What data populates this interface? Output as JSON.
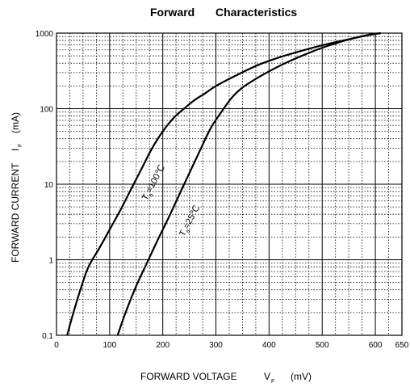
{
  "chart_data": {
    "type": "line",
    "title_part1": "Forward",
    "title_part2": "Characteristics",
    "xlabel": "FORWARD VOLTAGE",
    "xlabel_symbol": "V",
    "xlabel_subscript": "F",
    "xlabel_unit": "(mV)",
    "ylabel": "FORWARD CURRENT",
    "ylabel_symbol": "I",
    "ylabel_subscript": "F",
    "ylabel_unit": "(mA)",
    "xlim": [
      0,
      650
    ],
    "ylim": [
      0.1,
      1000
    ],
    "yscale": "log",
    "grid": true,
    "x_ticks": [
      "0",
      "100",
      "200",
      "300",
      "400",
      "500",
      "600",
      "650"
    ],
    "x_tick_values": [
      0,
      100,
      200,
      300,
      400,
      500,
      600,
      650
    ],
    "y_ticks": [
      "0.1",
      "1",
      "10",
      "100",
      "1000"
    ],
    "y_tick_values": [
      0.1,
      1,
      10,
      100,
      1000
    ],
    "series": [
      {
        "name_main": "T",
        "name_sub": "a",
        "name_rest": "=100℃",
        "label_at": [
          170,
          6
        ],
        "x": [
          20,
          30,
          45,
          60,
          80,
          100,
          120,
          140,
          160,
          180,
          200,
          220,
          240,
          260,
          280,
          300,
          340,
          380,
          420,
          460,
          500,
          540,
          580,
          610
        ],
        "y": [
          0.1,
          0.18,
          0.4,
          0.8,
          1.4,
          2.5,
          4.5,
          8.5,
          16,
          30,
          50,
          75,
          100,
          130,
          160,
          200,
          280,
          380,
          480,
          580,
          690,
          800,
          920,
          1000
        ]
      },
      {
        "name_main": "T",
        "name_sub": "a",
        "name_rest": "=25℃",
        "label_at": [
          240,
          2
        ],
        "x": [
          115,
          130,
          150,
          170,
          190,
          210,
          230,
          250,
          270,
          290,
          310,
          330,
          350,
          380,
          410,
          440,
          470,
          500,
          530,
          560,
          590,
          610
        ],
        "y": [
          0.1,
          0.2,
          0.45,
          0.9,
          1.8,
          3.5,
          7,
          14,
          28,
          55,
          90,
          140,
          190,
          260,
          340,
          430,
          530,
          640,
          750,
          860,
          960,
          1000
        ]
      }
    ]
  }
}
